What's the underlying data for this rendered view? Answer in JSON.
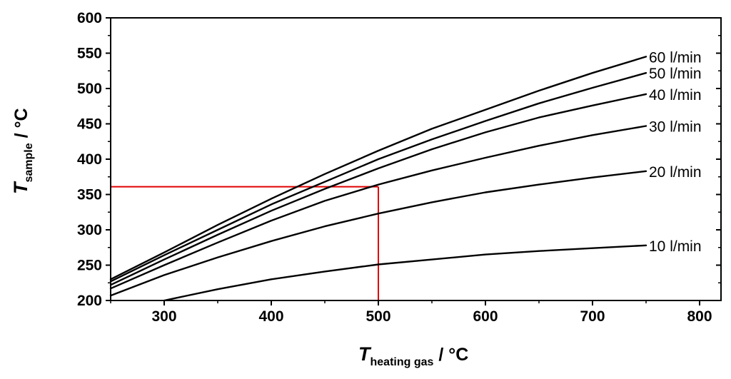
{
  "chart_data": {
    "type": "line",
    "xlabel_symbol": "T",
    "xlabel_subscript": "heating gas",
    "xlabel_unit": " / °C",
    "ylabel_symbol": "T",
    "ylabel_subscript": "sample",
    "ylabel_unit": " / °C",
    "xlim": [
      250,
      820
    ],
    "ylim": [
      200,
      600
    ],
    "xticks": [
      300,
      400,
      500,
      600,
      700,
      800
    ],
    "yticks": [
      200,
      250,
      300,
      350,
      400,
      450,
      500,
      550,
      600
    ],
    "grid": false,
    "legend": "inline labels at right end of each curve",
    "series": [
      {
        "name": "10 l/min",
        "x": [
          300,
          350,
          400,
          450,
          500,
          550,
          600,
          650,
          700,
          750
        ],
        "y": [
          200,
          216,
          230,
          241,
          251,
          258,
          265,
          270,
          274,
          278
        ]
      },
      {
        "name": "20 l/min",
        "x": [
          250,
          300,
          350,
          400,
          450,
          500,
          550,
          600,
          650,
          700,
          750
        ],
        "y": [
          207,
          236,
          261,
          284,
          305,
          323,
          339,
          353,
          364,
          374,
          383
        ]
      },
      {
        "name": "30 l/min",
        "x": [
          250,
          300,
          350,
          400,
          450,
          500,
          550,
          600,
          650,
          700,
          750
        ],
        "y": [
          217,
          250,
          282,
          313,
          341,
          364,
          384,
          402,
          419,
          434,
          447
        ]
      },
      {
        "name": "40 l/min",
        "x": [
          250,
          300,
          350,
          400,
          450,
          500,
          550,
          600,
          650,
          700,
          750
        ],
        "y": [
          222,
          258,
          293,
          327,
          358,
          387,
          414,
          438,
          459,
          476,
          492
        ]
      },
      {
        "name": "50 l/min",
        "x": [
          250,
          300,
          350,
          400,
          450,
          500,
          550,
          600,
          650,
          700,
          750
        ],
        "y": [
          227,
          264,
          300,
          336,
          368,
          400,
          428,
          454,
          479,
          501,
          522
        ]
      },
      {
        "name": "60 l/min",
        "x": [
          250,
          300,
          350,
          400,
          450,
          500,
          550,
          600,
          650,
          700,
          750
        ],
        "y": [
          230,
          268,
          307,
          344,
          379,
          412,
          443,
          470,
          497,
          522,
          545
        ]
      }
    ],
    "guide_lines": {
      "color": "#e00000",
      "x": 500,
      "y": 361
    }
  }
}
